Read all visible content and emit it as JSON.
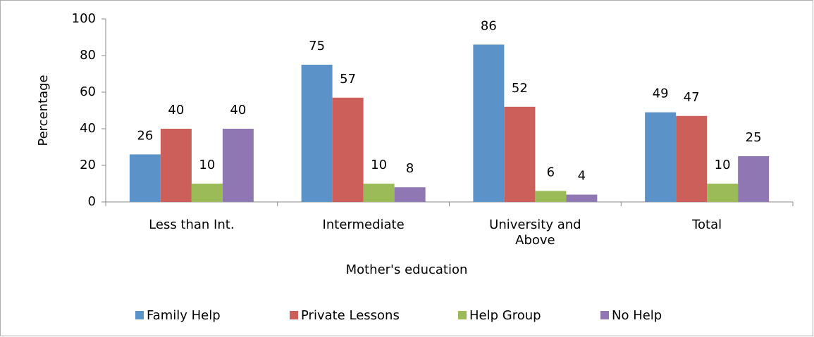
{
  "chart_data": {
    "type": "bar",
    "categories": [
      "Less than Int.",
      "Intermediate",
      "University and Above",
      "Total"
    ],
    "series": [
      {
        "name": "Family Help",
        "color": "#5b93c9",
        "values": [
          26,
          75,
          86,
          49
        ]
      },
      {
        "name": "Private Lessons",
        "color": "#cd5f5a",
        "values": [
          40,
          57,
          52,
          47
        ]
      },
      {
        "name": "Help Group",
        "color": "#9bbb59",
        "values": [
          10,
          10,
          6,
          10
        ]
      },
      {
        "name": "No Help",
        "color": "#8e77b3",
        "values": [
          40,
          8,
          4,
          25
        ]
      }
    ],
    "y_label": "Percentage",
    "x_label": "Mother's education",
    "ylim": [
      0,
      100
    ],
    "yticks": [
      0,
      20,
      40,
      60,
      80,
      100
    ],
    "grid": false,
    "legend": "bottom"
  }
}
